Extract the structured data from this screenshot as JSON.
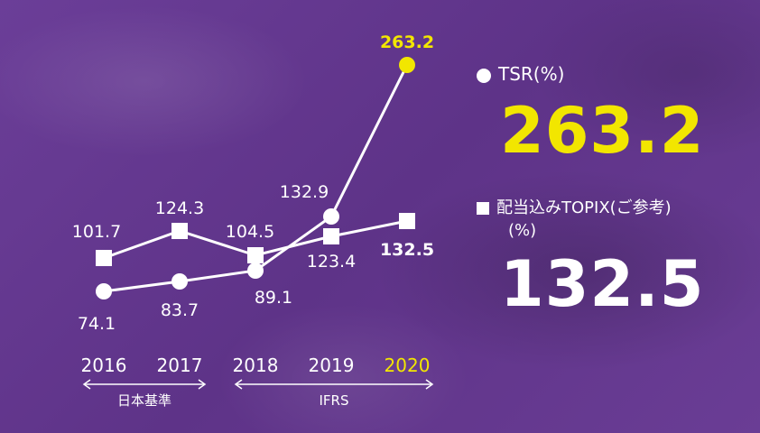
{
  "colors": {
    "background": "#6a3d96",
    "accent": "#f2e600",
    "primary": "#ffffff"
  },
  "legend": {
    "tsr_label": "TSR(%)",
    "tsr_value": "263.2",
    "topix_label": "配当込みTOPIX(ご参考)",
    "topix_unit": "(%)",
    "topix_value": "132.5"
  },
  "chart_data": {
    "type": "line",
    "categories": [
      "2016",
      "2017",
      "2018",
      "2019",
      "2020"
    ],
    "highlight_category": "2020",
    "series": [
      {
        "name": "TSR(%)",
        "marker": "circle",
        "values": [
          74.1,
          83.7,
          89.1,
          132.9,
          263.2
        ]
      },
      {
        "name": "配当込みTOPIX(ご参考)",
        "marker": "square",
        "values": [
          101.7,
          124.3,
          104.5,
          123.4,
          132.5
        ]
      }
    ],
    "basis_groups": [
      {
        "label": "日本基準",
        "from": "2016",
        "to": "2017"
      },
      {
        "label": "IFRS",
        "from": "2018",
        "to": "2020"
      }
    ]
  }
}
